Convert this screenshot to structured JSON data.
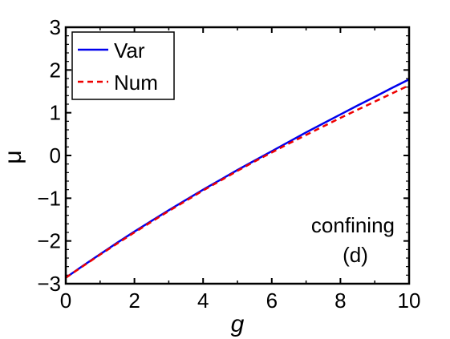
{
  "chart_data": {
    "type": "line",
    "xlabel": "g",
    "ylabel": "μ",
    "xlim": [
      0,
      10
    ],
    "ylim": [
      -3,
      3
    ],
    "x_ticks": [
      "0",
      "2",
      "4",
      "6",
      "8",
      "10"
    ],
    "y_ticks": [
      "−3",
      "−2",
      "−1",
      "0",
      "1",
      "2",
      "3"
    ],
    "grid": false,
    "legend_position": "top-left",
    "annotations": [
      "confining",
      "(d)"
    ],
    "series": [
      {
        "name": "Var",
        "color": "#0000ee",
        "style": "solid",
        "x": [
          0,
          0.5,
          1,
          1.5,
          2,
          2.5,
          3,
          3.5,
          4,
          4.5,
          5,
          5.5,
          6,
          6.5,
          7,
          7.5,
          8,
          8.5,
          9,
          9.5,
          10
        ],
        "y": [
          -2.86,
          -2.58,
          -2.31,
          -2.04,
          -1.78,
          -1.53,
          -1.28,
          -1.04,
          -0.8,
          -0.57,
          -0.34,
          -0.12,
          0.1,
          0.32,
          0.54,
          0.75,
          0.96,
          1.17,
          1.37,
          1.58,
          1.78
        ]
      },
      {
        "name": "Num",
        "color": "#ee0000",
        "style": "dashed",
        "x": [
          0,
          0.5,
          1,
          1.5,
          2,
          2.5,
          3,
          3.5,
          4,
          4.5,
          5,
          5.5,
          6,
          6.5,
          7,
          7.5,
          8,
          8.5,
          9,
          9.5,
          10
        ],
        "y": [
          -2.86,
          -2.59,
          -2.32,
          -2.06,
          -1.8,
          -1.55,
          -1.3,
          -1.06,
          -0.82,
          -0.59,
          -0.36,
          -0.14,
          0.07,
          0.28,
          0.48,
          0.68,
          0.88,
          1.07,
          1.26,
          1.45,
          1.64
        ]
      }
    ]
  }
}
